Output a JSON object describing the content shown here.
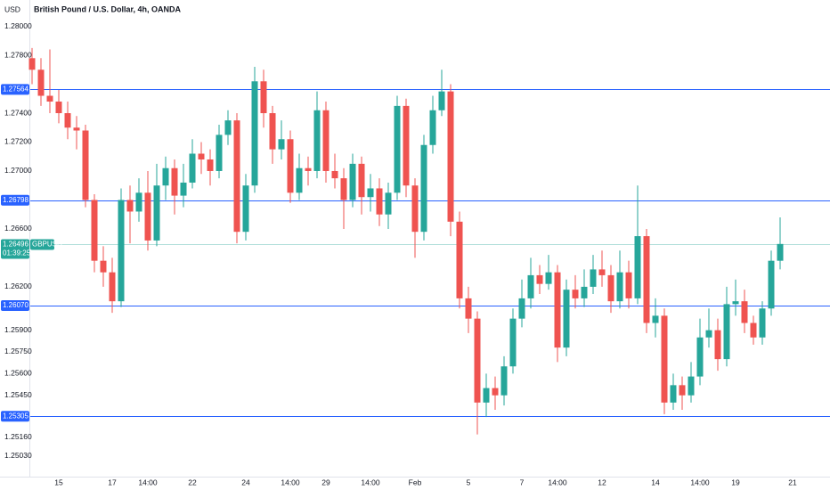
{
  "chart_data": {
    "type": "candlestick",
    "title": "British Pound / U.S. Dollar, 4h, OANDA",
    "currency": "USD",
    "up_color": "#26a69a",
    "down_color": "#ef5350",
    "grid": false,
    "ylim": [
      1.24888,
      1.28182
    ],
    "yticks": [
      {
        "value": 1.28,
        "label": "1.28000"
      },
      {
        "value": 1.278,
        "label": "1.27800"
      },
      {
        "value": 1.274,
        "label": "1.27400"
      },
      {
        "value": 1.272,
        "label": "1.27200"
      },
      {
        "value": 1.27,
        "label": "1.27000"
      },
      {
        "value": 1.266,
        "label": "1.26600"
      },
      {
        "value": 1.262,
        "label": "1.26200"
      },
      {
        "value": 1.259,
        "label": "1.25900"
      },
      {
        "value": 1.2575,
        "label": "1.25750"
      },
      {
        "value": 1.256,
        "label": "1.25600"
      },
      {
        "value": 1.2545,
        "label": "1.25450"
      },
      {
        "value": 1.2516,
        "label": "1.25160"
      },
      {
        "value": 1.2503,
        "label": "1.25030"
      }
    ],
    "categories": [
      null,
      null,
      null,
      "15",
      null,
      null,
      null,
      null,
      null,
      "17",
      null,
      null,
      null,
      "14:00",
      null,
      null,
      null,
      null,
      "22",
      null,
      null,
      null,
      null,
      null,
      "24",
      null,
      null,
      null,
      null,
      "14:00",
      null,
      null,
      null,
      "29",
      null,
      null,
      null,
      null,
      "14:00",
      null,
      null,
      null,
      null,
      "Feb",
      null,
      null,
      null,
      null,
      null,
      "5",
      null,
      null,
      null,
      null,
      null,
      "7",
      null,
      null,
      null,
      "14:00",
      null,
      null,
      null,
      null,
      "12",
      null,
      null,
      null,
      null,
      null,
      "14",
      null,
      null,
      null,
      null,
      "14:00",
      null,
      null,
      null,
      "19",
      null,
      null,
      null,
      null,
      null
    ],
    "future_label": "21",
    "open": [
      1.2778,
      1.277,
      1.2752,
      1.2748,
      1.274,
      1.273,
      1.2728,
      1.268,
      1.2638,
      1.263,
      1.261,
      1.268,
      1.2672,
      1.2685,
      1.2652,
      1.269,
      1.2702,
      1.2683,
      1.2692,
      1.2712,
      1.2708,
      1.27,
      1.2725,
      1.2735,
      1.2658,
      1.269,
      1.2762,
      1.274,
      1.2715,
      1.2722,
      1.2685,
      1.2702,
      1.27,
      1.2742,
      1.27,
      1.2695,
      1.268,
      1.2705,
      1.2682,
      1.2688,
      1.267,
      1.2685,
      1.2745,
      1.269,
      1.2658,
      1.2718,
      1.2742,
      1.2755,
      1.2665,
      1.2612,
      1.2598,
      1.254,
      1.255,
      1.2545,
      1.2565,
      1.2598,
      1.2612,
      1.2628,
      1.2622,
      1.263,
      1.2578,
      1.2618,
      1.2612,
      1.262,
      1.2632,
      1.2628,
      1.261,
      1.263,
      1.2612,
      1.2655,
      1.2595,
      1.26,
      1.254,
      1.2552,
      1.2545,
      1.2558,
      1.2585,
      1.259,
      1.257,
      1.2608,
      1.261,
      1.2595,
      1.2585,
      1.2605,
      1.2638
    ],
    "high": [
      1.2785,
      1.2778,
      1.2784,
      1.2756,
      1.2748,
      1.2738,
      1.2732,
      1.2684,
      1.2648,
      1.264,
      1.2688,
      1.269,
      1.2695,
      1.27,
      1.2705,
      1.271,
      1.2708,
      1.2705,
      1.2722,
      1.272,
      1.2715,
      1.2732,
      1.2742,
      1.274,
      1.2698,
      1.2772,
      1.277,
      1.2745,
      1.2735,
      1.2728,
      1.2712,
      1.271,
      1.2755,
      1.2748,
      1.2712,
      1.2702,
      1.2712,
      1.271,
      1.2698,
      1.2695,
      1.2692,
      1.2752,
      1.275,
      1.2695,
      1.2725,
      1.2752,
      1.277,
      1.276,
      1.2672,
      1.262,
      1.2603,
      1.256,
      1.2558,
      1.2572,
      1.2605,
      1.2625,
      1.264,
      1.2635,
      1.2642,
      1.2635,
      1.2625,
      1.2628,
      1.2632,
      1.2642,
      1.2645,
      1.2635,
      1.2645,
      1.2638,
      1.269,
      1.266,
      1.2612,
      1.2605,
      1.256,
      1.2558,
      1.2568,
      1.2598,
      1.2605,
      1.2598,
      1.262,
      1.2625,
      1.2618,
      1.26,
      1.261,
      1.2645,
      1.2668
    ],
    "low": [
      1.276,
      1.2745,
      1.274,
      1.2733,
      1.2722,
      1.2715,
      1.2675,
      1.263,
      1.262,
      1.2602,
      1.2606,
      1.265,
      1.2665,
      1.2645,
      1.2648,
      1.268,
      1.267,
      1.2675,
      1.2688,
      1.2698,
      1.269,
      1.2695,
      1.2718,
      1.265,
      1.2652,
      1.2685,
      1.273,
      1.2705,
      1.2708,
      1.2678,
      1.268,
      1.269,
      1.2695,
      1.2692,
      1.2688,
      1.266,
      1.2675,
      1.267,
      1.2672,
      1.2662,
      1.266,
      1.268,
      1.2682,
      1.264,
      1.2652,
      1.2712,
      1.2738,
      1.2655,
      1.2605,
      1.2588,
      1.2518,
      1.253,
      1.2535,
      1.2538,
      1.256,
      1.2592,
      1.2605,
      1.2615,
      1.2618,
      1.2568,
      1.2572,
      1.2605,
      1.2606,
      1.2615,
      1.262,
      1.2602,
      1.2605,
      1.2605,
      1.2608,
      1.2588,
      1.2585,
      1.2532,
      1.2535,
      1.2535,
      1.254,
      1.2552,
      1.2578,
      1.2562,
      1.2565,
      1.26,
      1.2588,
      1.258,
      1.258,
      1.26,
      1.2632
    ],
    "close": [
      1.277,
      1.2752,
      1.2748,
      1.274,
      1.273,
      1.2728,
      1.268,
      1.2638,
      1.263,
      1.261,
      1.268,
      1.2672,
      1.2685,
      1.2652,
      1.269,
      1.2702,
      1.2683,
      1.2692,
      1.2712,
      1.2708,
      1.27,
      1.2725,
      1.2735,
      1.2658,
      1.269,
      1.2762,
      1.274,
      1.2715,
      1.2722,
      1.2685,
      1.2702,
      1.27,
      1.2742,
      1.27,
      1.2695,
      1.268,
      1.2705,
      1.2682,
      1.2688,
      1.267,
      1.2685,
      1.2745,
      1.269,
      1.2658,
      1.2718,
      1.2742,
      1.2755,
      1.2665,
      1.2612,
      1.2598,
      1.254,
      1.255,
      1.2545,
      1.2565,
      1.2598,
      1.2612,
      1.2628,
      1.2622,
      1.263,
      1.2578,
      1.2618,
      1.2612,
      1.262,
      1.2632,
      1.2628,
      1.261,
      1.263,
      1.2612,
      1.2655,
      1.2595,
      1.26,
      1.254,
      1.2552,
      1.2545,
      1.2558,
      1.2585,
      1.259,
      1.257,
      1.2608,
      1.261,
      1.2595,
      1.2585,
      1.2605,
      1.2638,
      1.26496
    ],
    "levels": {
      "color": "#2962ff",
      "values": [
        1.27564,
        1.26798,
        1.2607,
        1.25305
      ],
      "value_labels": [
        "1.27564",
        "1.26798",
        "1.26070",
        "1.25305"
      ]
    },
    "last_price": {
      "value": 1.26496,
      "symbol": "GBPUSD",
      "countdown": "01:39:25",
      "color": "#26a69a"
    }
  }
}
